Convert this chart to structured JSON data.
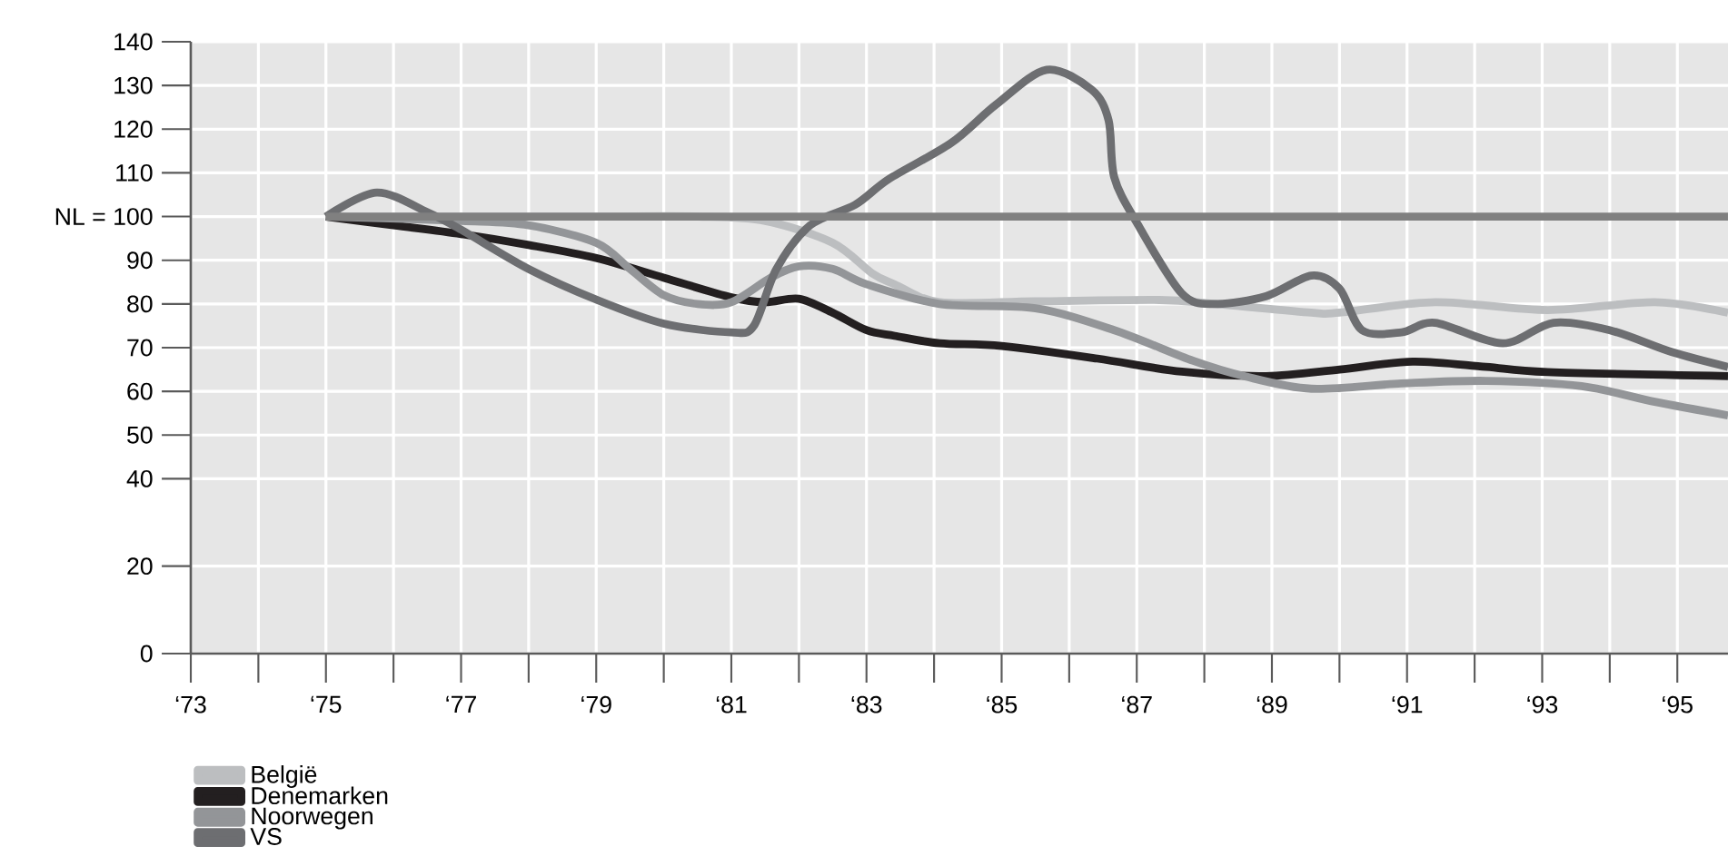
{
  "chart_data": {
    "type": "line",
    "xlim": [
      "1973",
      "1995-10"
    ],
    "ylim": [
      0,
      140
    ],
    "xticks": [
      {
        "value": "1973",
        "label": "‘73"
      },
      {
        "value": "1974",
        "label": null
      },
      {
        "value": "1975",
        "label": "‘75"
      },
      {
        "value": "1976",
        "label": null
      },
      {
        "value": "1977",
        "label": "‘77"
      },
      {
        "value": "1978",
        "label": null
      },
      {
        "value": "1979",
        "label": "‘79"
      },
      {
        "value": "1980",
        "label": null
      },
      {
        "value": "1981",
        "label": "‘81"
      },
      {
        "value": "1982",
        "label": null
      },
      {
        "value": "1983",
        "label": "‘83"
      },
      {
        "value": "1984",
        "label": null
      },
      {
        "value": "1985",
        "label": "‘85"
      },
      {
        "value": "1986",
        "label": null
      },
      {
        "value": "1987",
        "label": "‘87"
      },
      {
        "value": "1988",
        "label": null
      },
      {
        "value": "1989",
        "label": "‘89"
      },
      {
        "value": "1990",
        "label": null
      },
      {
        "value": "1991",
        "label": "‘91"
      },
      {
        "value": "1992",
        "label": null
      },
      {
        "value": "1993",
        "label": "‘93"
      },
      {
        "value": "1994",
        "label": null
      },
      {
        "value": "1995",
        "label": "‘95"
      }
    ],
    "yticks": [
      0,
      20,
      40,
      50,
      60,
      70,
      80,
      90,
      {
        "value": 100,
        "label": "NL = 100"
      },
      110,
      120,
      130,
      140
    ],
    "grid": true,
    "legend": "bottom left",
    "marker": "none",
    "line_style": "solid",
    "series": [
      {
        "name": "België",
        "color": "#bcbec0",
        "x": [
          "1975",
          "1977",
          "1979",
          "1980-07",
          "1981-07",
          "1982-07",
          "1983-02",
          "1983-06",
          "1984-02",
          "1985-07",
          "1987-05",
          "1988-03",
          "1989-08",
          "1990",
          "1991-06",
          "1993-02",
          "1994-09",
          "1995-10"
        ],
        "values": [
          100,
          100,
          100,
          100,
          99,
          94,
          87,
          84.5,
          80.4,
          80.6,
          80.9,
          80,
          78,
          78,
          80.4,
          78.6,
          80.4,
          78
        ]
      },
      {
        "name": "Denemarken",
        "color": "#231f20",
        "x": [
          "1975",
          "1976",
          "1977",
          "1978",
          "1979",
          "1980",
          "1981",
          "1981-07",
          "1982",
          "1982-07",
          "1983",
          "1983-06",
          "1984-02",
          "1985",
          "1986-06",
          "1987-09",
          "1988-12",
          "1990",
          "1991-02",
          "1992-03",
          "1993-02",
          "1995-10"
        ],
        "values": [
          100,
          98,
          96,
          93.5,
          90.5,
          86,
          81.5,
          80.4,
          81.2,
          78,
          74,
          72.7,
          71,
          70.4,
          67.5,
          64.5,
          63.5,
          65,
          66.8,
          65.6,
          64.4,
          63.5
        ]
      },
      {
        "name": "Noorwegen",
        "color": "#939598",
        "x": [
          "1975",
          "1977",
          "1978",
          "1979",
          "1979-07",
          "1980",
          "1980-07",
          "1981",
          "1981-08",
          "1982",
          "1982-07",
          "1983",
          "1984-02",
          "1985-07",
          "1986-09",
          "1987-11",
          "1988-08",
          "1989-08",
          "1990-12",
          "1992-03",
          "1993-08",
          "1994-09",
          "1995-10"
        ],
        "values": [
          100,
          99,
          98,
          94,
          88,
          82,
          80,
          80.4,
          86,
          88.6,
          88,
          84.5,
          80,
          79,
          74,
          67,
          63.5,
          60.6,
          61.8,
          62.4,
          61.2,
          57.6,
          54.5
        ]
      },
      {
        "name": "VS",
        "color": "#6d6e71",
        "x": [
          "1975",
          "1975-10",
          "1976-07",
          "1977",
          "1978",
          "1979",
          "1980",
          "1981",
          "1981-05",
          "1981-09",
          "1982-03",
          "1982-11",
          "1983-05",
          "1984-04",
          "1984-12",
          "1985-09",
          "1986-05",
          "1986-08",
          "1986-09",
          "1987",
          "1987-09",
          "1988-03",
          "1988-12",
          "1989-08",
          "1990",
          "1990-05",
          "1990-12",
          "1991-06",
          "1992-06",
          "1993-03",
          "1994",
          "1994-12",
          "1995-10"
        ],
        "values": [
          100,
          105.5,
          101,
          97,
          88,
          81,
          75.5,
          73.5,
          75,
          88,
          98,
          102.7,
          108.6,
          116.8,
          125.6,
          133.6,
          129,
          122,
          109,
          98.6,
          82.4,
          80,
          81.8,
          86.5,
          83.5,
          74,
          73.5,
          75.7,
          71,
          75.7,
          74,
          69,
          65.6
        ]
      },
      {
        "color": "#808080",
        "x": [
          "1975",
          "1995-10"
        ],
        "values": [
          100,
          100
        ]
      }
    ]
  }
}
